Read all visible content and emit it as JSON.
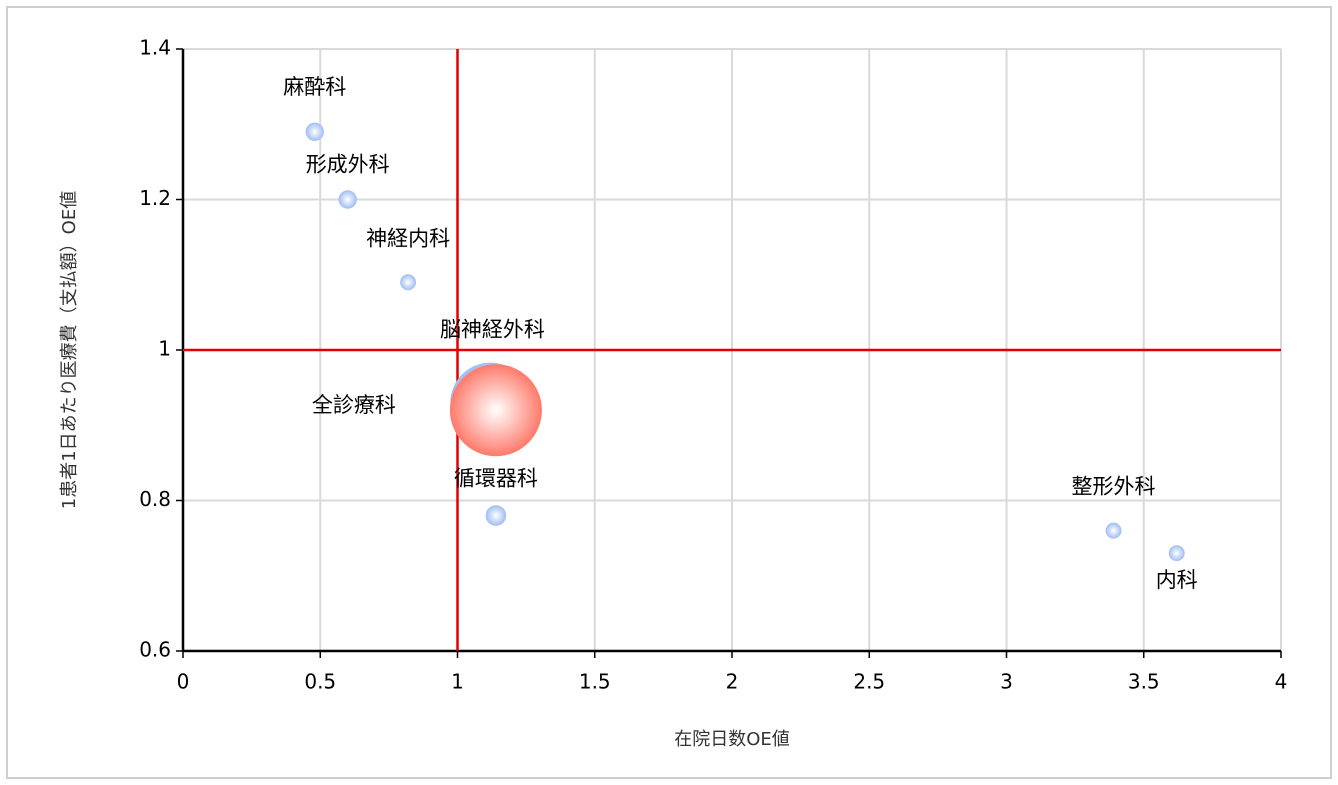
{
  "chart_data": {
    "type": "scatter",
    "x_label": "在院日数OE値",
    "y_label": "1患者1日あたり医療費（支払額）OE値",
    "labels": [
      "麻酔科",
      "形成外科",
      "神経内科",
      "脳神経外科",
      "全診療科",
      "循環器科",
      "整形外科",
      "内科"
    ],
    "x": [
      0.48,
      0.6,
      0.82,
      1.12,
      1.14,
      1.14,
      3.39,
      3.62
    ],
    "values": [
      1.29,
      1.2,
      1.09,
      0.93,
      0.92,
      0.78,
      0.76,
      0.73
    ],
    "sizes": [
      4,
      4,
      3,
      76,
      100,
      5,
      3,
      3
    ],
    "colors": [
      "#9fbdf2",
      "#9fbdf2",
      "#9fbdf2",
      "#9fbdf2",
      "#ff7a6b",
      "#9fbdf2",
      "#9fbdf2",
      "#9fbdf2"
    ],
    "xlim": [
      0,
      4
    ],
    "xticks": [
      0,
      0.5,
      1,
      1.5,
      2,
      2.5,
      3,
      3.5,
      4
    ],
    "ylim": [
      0.6,
      1.4
    ],
    "yticks": [
      0.6,
      0.8,
      1,
      1.2,
      1.4
    ],
    "grid": true,
    "reference_x": [
      1
    ],
    "reference_y": [
      1
    ],
    "reference_color": "#e00000"
  }
}
